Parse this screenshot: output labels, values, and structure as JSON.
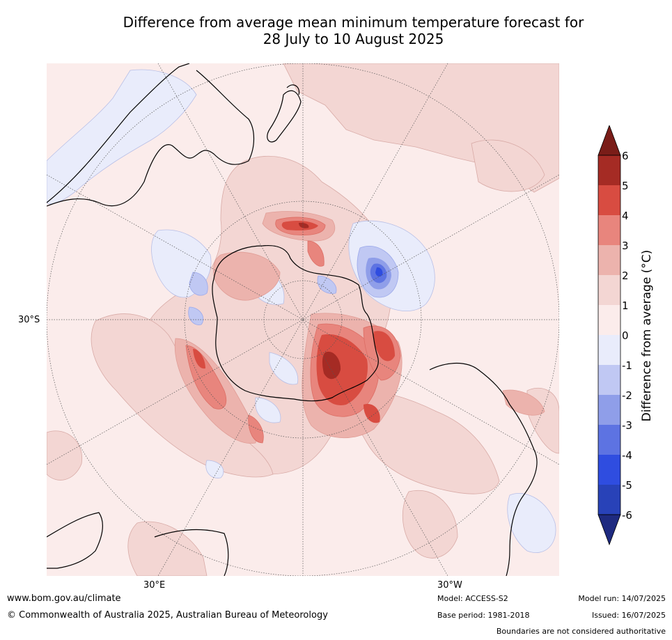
{
  "title": {
    "line1": "Difference from average mean minimum temperature forecast for",
    "line2": "28 July to 10 August 2025"
  },
  "map": {
    "projection": "south-polar-stereographic",
    "lat_label": "30°S",
    "lon_labels": {
      "east": "30°E",
      "west": "30°W"
    }
  },
  "legend": {
    "title": "Difference from average (°C)",
    "tick_labels": [
      "6",
      "5",
      "4",
      "3",
      "2",
      "1",
      "0",
      "-1",
      "-2",
      "-3",
      "-4",
      "-5",
      "-6"
    ],
    "bins": [
      {
        "range": "6+",
        "color": "#7a1d18"
      },
      {
        "range": "5 to 6",
        "color": "#a52b24"
      },
      {
        "range": "4 to 5",
        "color": "#d84c41"
      },
      {
        "range": "3 to 4",
        "color": "#e8857d"
      },
      {
        "range": "2 to 3",
        "color": "#ecb3ad"
      },
      {
        "range": "1 to 2",
        "color": "#f3d6d3"
      },
      {
        "range": "0 to 1",
        "color": "#fbeceb"
      },
      {
        "range": "-1 to 0",
        "color": "#e9ecfb"
      },
      {
        "range": "-2 to -1",
        "color": "#c0c8f3"
      },
      {
        "range": "-3 to -2",
        "color": "#8f9ee9"
      },
      {
        "range": "-4 to -3",
        "color": "#5d73e2"
      },
      {
        "range": "-5 to -4",
        "color": "#2f4de0"
      },
      {
        "range": "-6 to -5",
        "color": "#2842b8"
      },
      {
        "range": "-6-",
        "color": "#1e2a80"
      }
    ]
  },
  "footer": {
    "website": "www.bom.gov.au/climate",
    "copyright": "© Commonwealth of Australia 2025, Australian Bureau of Meteorology",
    "model": "Model: ACCESS-S2",
    "base_period": "Base period: 1981-2018",
    "model_run": "Model run: 14/07/2025",
    "issued": "Issued: 16/07/2025",
    "disclaimer": "Boundaries are not considered authoritative"
  },
  "colors": {
    "background": "#fbeceb",
    "land_outline": "#000000",
    "graticule": "#555555"
  }
}
